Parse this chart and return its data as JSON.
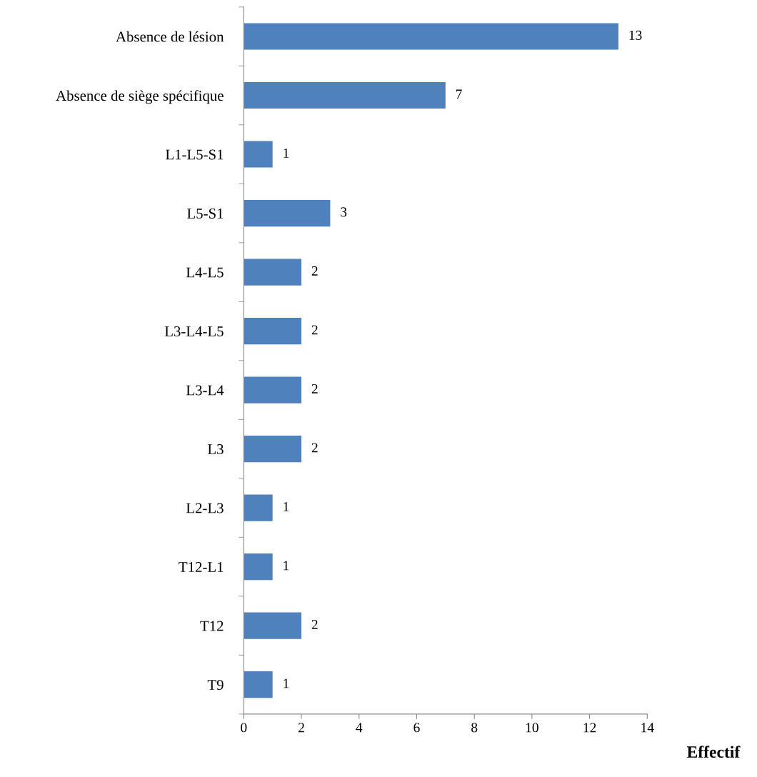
{
  "chart_data": {
    "type": "bar",
    "orientation": "horizontal",
    "xlabel": "Effectif",
    "categories": [
      "Absence de lésion",
      "Absence de siège spécifique",
      "L1-L5-S1",
      "L5-S1",
      "L4-L5",
      "L3-L4-L5",
      "L3-L4",
      "L3",
      "L2-L3",
      "T12-L1",
      "T12",
      "T9"
    ],
    "values": [
      13,
      7,
      1,
      3,
      2,
      2,
      2,
      2,
      1,
      1,
      2,
      1
    ],
    "color": "#4f81bd",
    "data_labels": true,
    "xlim": [
      0,
      14
    ],
    "xticks": [
      0,
      2,
      4,
      6,
      8,
      10,
      12,
      14
    ],
    "grid": false,
    "legend": false
  }
}
